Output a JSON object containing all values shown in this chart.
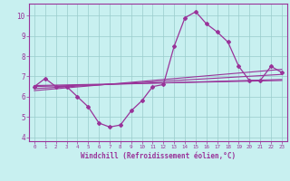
{
  "xlabel": "Windchill (Refroidissement éolien,°C)",
  "xlim": [
    -0.5,
    23.5
  ],
  "ylim": [
    3.8,
    10.6
  ],
  "yticks": [
    4,
    5,
    6,
    7,
    8,
    9,
    10
  ],
  "xticks": [
    0,
    1,
    2,
    3,
    4,
    5,
    6,
    7,
    8,
    9,
    10,
    11,
    12,
    13,
    14,
    15,
    16,
    17,
    18,
    19,
    20,
    21,
    22,
    23
  ],
  "bg_color": "#c8f0f0",
  "grid_color": "#99cccc",
  "line_color": "#993399",
  "main_series_x": [
    0,
    1,
    2,
    3,
    4,
    5,
    6,
    7,
    8,
    9,
    10,
    11,
    12,
    13,
    14,
    15,
    16,
    17,
    18,
    19,
    20,
    21,
    22,
    23
  ],
  "main_series_y": [
    6.5,
    6.9,
    6.5,
    6.5,
    6.0,
    5.5,
    4.7,
    4.5,
    4.6,
    5.3,
    5.8,
    6.5,
    6.6,
    8.5,
    9.9,
    10.2,
    9.6,
    9.2,
    8.7,
    7.5,
    6.8,
    6.8,
    7.5,
    7.2
  ],
  "trend1_x": [
    0,
    23
  ],
  "trend1_y": [
    6.4,
    7.1
  ],
  "trend2_x": [
    0,
    23
  ],
  "trend2_y": [
    6.55,
    6.8
  ],
  "trend3_x": [
    0,
    23
  ],
  "trend3_y": [
    6.3,
    7.35
  ],
  "trend4_x": [
    0,
    23
  ],
  "trend4_y": [
    6.5,
    6.85
  ]
}
